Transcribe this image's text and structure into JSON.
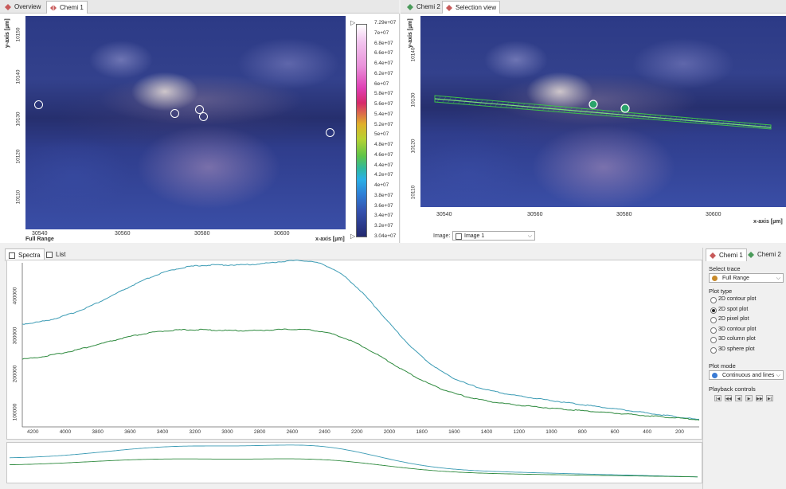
{
  "left_tabs": [
    {
      "label": "Overview",
      "icon": "chem-icon",
      "active": false
    },
    {
      "label": "Chemi 1",
      "icon": "chem-icon",
      "active": true
    }
  ],
  "right_tabs": [
    {
      "label": "Chemi 2",
      "icon": "chem-icon",
      "active": false
    },
    {
      "label": "Selection view",
      "icon": "selection-icon",
      "active": true
    }
  ],
  "left_plot": {
    "y_axis_title": "y-axis [µm]",
    "x_axis_title": "x-axis [µm]",
    "range_label": "Full Range",
    "x_ticks": [
      "30540",
      "30560",
      "30580",
      "30600"
    ],
    "y_ticks": [
      "10150",
      "10140",
      "10130",
      "10120",
      "10110"
    ],
    "spots": [
      {
        "name": "spot-white",
        "color": "#f2f2f2"
      },
      {
        "name": "spot-magenta",
        "color": "#d6298f"
      },
      {
        "name": "spot-green",
        "color": "#7cc83a"
      },
      {
        "name": "spot-cyan",
        "color": "#36b8d8"
      },
      {
        "name": "spot-navy",
        "color": "#1e2a6a"
      }
    ]
  },
  "colorbar": {
    "labels": [
      "7.29e+07",
      "7e+07",
      "6.8e+07",
      "6.6e+07",
      "6.4e+07",
      "6.2e+07",
      "6e+07",
      "5.8e+07",
      "5.6e+07",
      "5.4e+07",
      "5.2e+07",
      "5e+07",
      "4.8e+07",
      "4.6e+07",
      "4.4e+07",
      "4.2e+07",
      "4e+07",
      "3.8e+07",
      "3.6e+07",
      "3.4e+07",
      "3.2e+07",
      "3.04e+07"
    ]
  },
  "right_plot": {
    "y_axis_title": "y-axis [µm]",
    "x_axis_title": "x-axis [µm]",
    "x_ticks": [
      "30540",
      "30560",
      "30580",
      "30600"
    ],
    "y_ticks": [
      "10140",
      "10130",
      "10120",
      "10110"
    ],
    "image_label": "Image:",
    "image_value": "Image 1"
  },
  "spectra_tabs": [
    {
      "label": "Spectra",
      "active": true
    },
    {
      "label": "List",
      "active": false
    }
  ],
  "spectra": {
    "x_ticks": [
      "4200",
      "4000",
      "3800",
      "3600",
      "3400",
      "3200",
      "3000",
      "2800",
      "2600",
      "2400",
      "2200",
      "2000",
      "1800",
      "1600",
      "1400",
      "1200",
      "1000",
      "800",
      "600",
      "400",
      "200"
    ],
    "y_ticks": [
      "400000",
      "300000",
      "200000",
      "100000"
    ]
  },
  "right_panel": {
    "tabs": [
      "Chemi 1",
      "Chemi 2"
    ],
    "select_trace_label": "Select trace",
    "trace_value": "Full Range",
    "plot_type_label": "Plot type",
    "plot_types": [
      {
        "label": "2D contour plot",
        "checked": false
      },
      {
        "label": "2D spot plot",
        "checked": true
      },
      {
        "label": "2D pixel plot",
        "checked": false
      },
      {
        "label": "3D contour plot",
        "checked": false
      },
      {
        "label": "3D column plot",
        "checked": false
      },
      {
        "label": "3D sphere plot",
        "checked": false
      }
    ],
    "plot_mode_label": "Plot mode",
    "plot_mode_value": "Continuous and lines",
    "playback_label": "Playback controls",
    "playback_buttons": [
      "|◀",
      "◀◀",
      "◀",
      "▶",
      "▶▶",
      "▶|"
    ]
  },
  "colors": {
    "spectrum_upper": "#3b9bb4",
    "spectrum_lower": "#2e8a3e",
    "selection": "#3ec04a"
  }
}
